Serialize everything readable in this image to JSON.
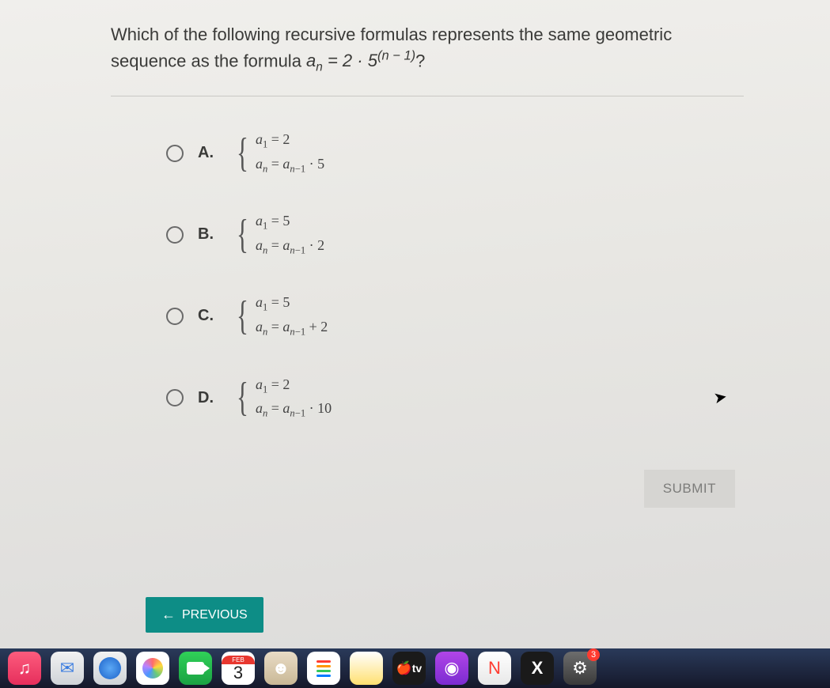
{
  "question": {
    "line1": "Which of the following recursive formulas represents the same geometric",
    "line2_prefix": "sequence as the formula ",
    "line2_formula_html": "a<sub class='ital'>n</sub> = 2 · 5<sup>(<span class='ital'>n</span> − 1)</sup>",
    "line2_suffix": "?"
  },
  "options": [
    {
      "letter": "A.",
      "line1_html": "<span class='ital'>a</span><sub>1</sub> = 2",
      "line2_html": "<span class='ital'>a</span><sub class='ital'>n</sub> = <span class='ital'>a</span><sub><span class='ital'>n</span>−1</sub> · 5"
    },
    {
      "letter": "B.",
      "line1_html": "<span class='ital'>a</span><sub>1</sub> = 5",
      "line2_html": "<span class='ital'>a</span><sub class='ital'>n</sub> = <span class='ital'>a</span><sub><span class='ital'>n</span>−1</sub> · 2"
    },
    {
      "letter": "C.",
      "line1_html": "<span class='ital'>a</span><sub>1</sub> = 5",
      "line2_html": "<span class='ital'>a</span><sub class='ital'>n</sub> = <span class='ital'>a</span><sub><span class='ital'>n</span>−1</sub> + 2"
    },
    {
      "letter": "D.",
      "line1_html": "<span class='ital'>a</span><sub>1</sub> = 2",
      "line2_html": "<span class='ital'>a</span><sub class='ital'>n</sub> = <span class='ital'>a</span><sub><span class='ital'>n</span>−1</sub> · 10"
    }
  ],
  "buttons": {
    "submit": "SUBMIT",
    "previous": "PREVIOUS"
  },
  "dock": {
    "calendar": {
      "month": "FEB",
      "day": "3"
    },
    "tv_label": "tv",
    "badge": "3"
  },
  "colors": {
    "submit_bg": "#d6d5d2",
    "submit_fg": "#7c7c7a",
    "prev_bg": "#0d8d86",
    "prev_fg": "#ffffff"
  }
}
